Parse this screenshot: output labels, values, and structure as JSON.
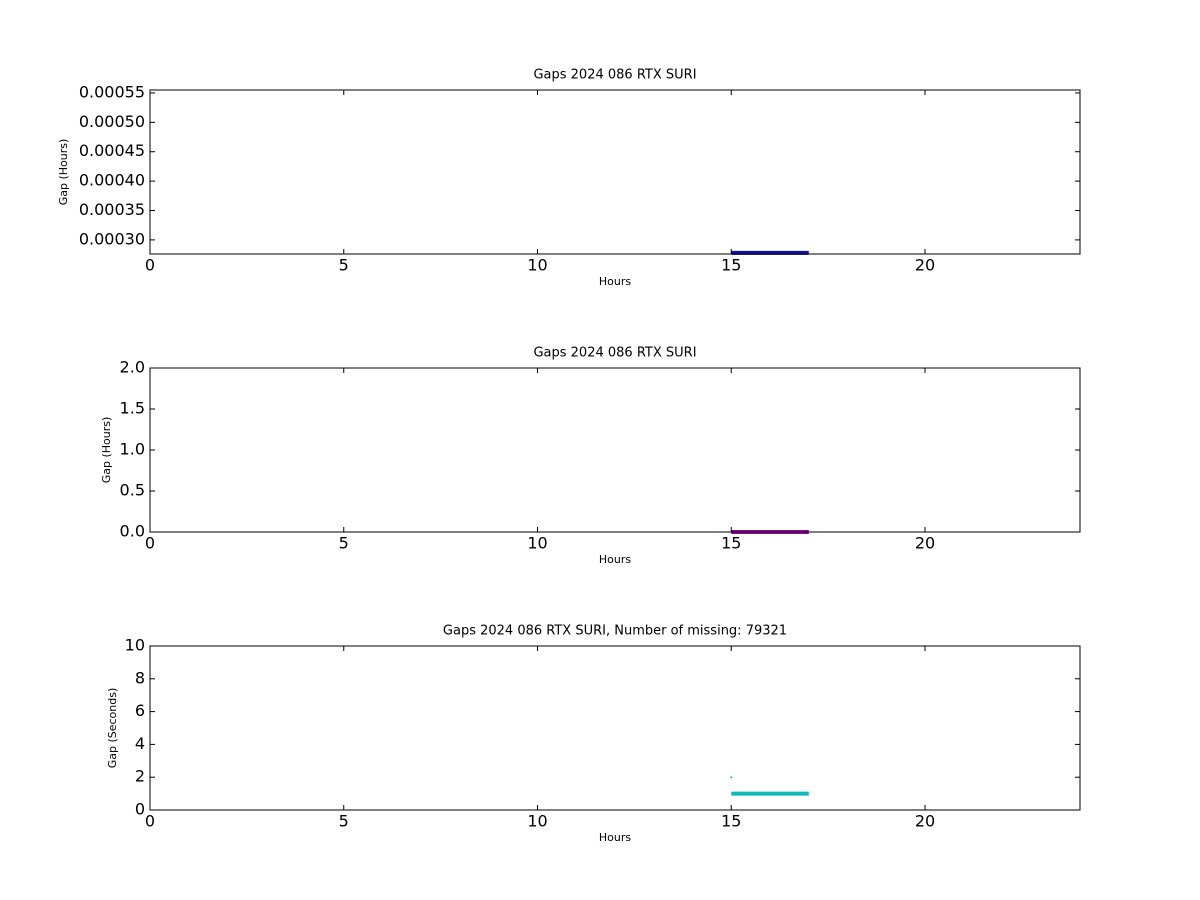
{
  "chart_data": [
    {
      "type": "line",
      "title": "Gaps 2024 086 RTX  SURI",
      "xlabel": "Hours",
      "ylabel": "Gap (Hours)",
      "xlim": [
        0,
        24
      ],
      "xticks": [
        0,
        5,
        10,
        15,
        20
      ],
      "ylim": [
        0.000276,
        0.000555
      ],
      "yticks": [
        {
          "value": 0.0003,
          "label": "0.00030"
        },
        {
          "value": 0.00035,
          "label": "0.00035"
        },
        {
          "value": 0.0004,
          "label": "0.00040"
        },
        {
          "value": 0.00045,
          "label": "0.00045"
        },
        {
          "value": 0.0005,
          "label": "0.00050"
        },
        {
          "value": 0.00055,
          "label": "0.00055"
        }
      ],
      "series": [
        {
          "color": "#1010a8",
          "x": [
            15,
            17
          ],
          "values": [
            0.000278,
            0.000278
          ]
        }
      ]
    },
    {
      "type": "line",
      "title": "Gaps 2024 086 RTX  SURI",
      "xlabel": "Hours",
      "ylabel": "Gap (Hours)",
      "xlim": [
        0,
        24
      ],
      "xticks": [
        0,
        5,
        10,
        15,
        20
      ],
      "ylim": [
        0,
        2
      ],
      "yticks": [
        {
          "value": 0,
          "label": "0.0"
        },
        0.5,
        {
          "value": 1,
          "label": "1.0"
        },
        1.5,
        {
          "value": 2,
          "label": "2.0"
        }
      ],
      "series": [
        {
          "color": "#990099",
          "x": [
            15,
            17
          ],
          "values": [
            0.000278,
            0.000278
          ]
        }
      ]
    },
    {
      "type": "line",
      "title": "Gaps 2024 086 RTX  SURI, Number of missing: 79321",
      "xlabel": "Hours",
      "ylabel": "Gap (Seconds)",
      "xlim": [
        0,
        24
      ],
      "xticks": [
        0,
        5,
        10,
        15,
        20
      ],
      "ylim": [
        0,
        10
      ],
      "yticks": [
        0,
        2,
        4,
        6,
        8,
        10
      ],
      "series": [
        {
          "color": "#11b8b8",
          "x": [
            15,
            17
          ],
          "values": [
            1,
            1
          ]
        },
        {
          "color": "#11b8b8",
          "x": [
            15
          ],
          "values": [
            2
          ]
        }
      ]
    }
  ]
}
